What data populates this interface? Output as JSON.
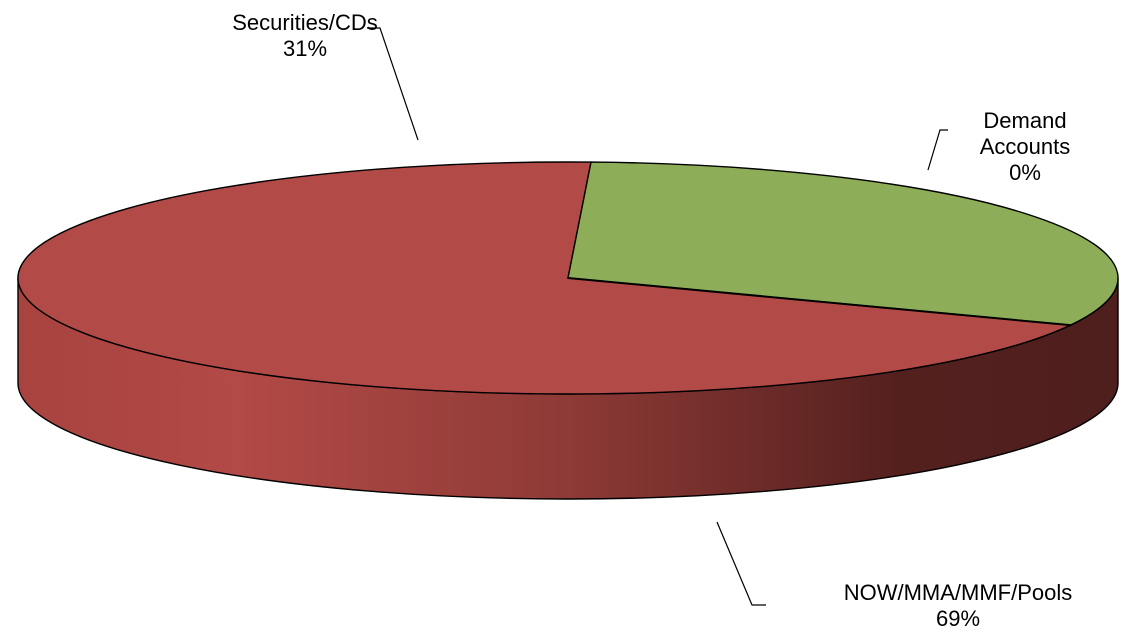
{
  "chart_data": {
    "type": "pie",
    "title": "",
    "slices": [
      {
        "label": "NOW/MMA/MMF/Pools",
        "value": 69,
        "value_label": "69%",
        "color": "#B24A47"
      },
      {
        "label": "Securities/CDs",
        "value": 31,
        "value_label": "31%",
        "color": "#8EAD58"
      },
      {
        "label": "Demand Accounts",
        "value": 0,
        "value_label": "0%",
        "color": "#4F7EBD"
      }
    ],
    "style": "3d",
    "legend": "none"
  }
}
